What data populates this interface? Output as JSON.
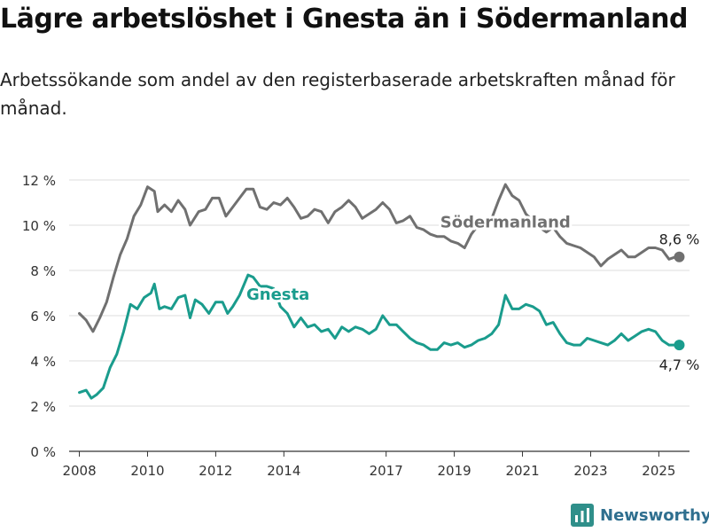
{
  "title": "Lägre arbetslöshet i Gnesta än i Södermanland",
  "subtitle": "Arbetssökande som andel av den registerbaserade arbetskraften månad för månad.",
  "brand": "Newsworthy",
  "colors": {
    "gnesta": "#1a9c8d",
    "sodermanland": "#707070",
    "grid": "#dddddd",
    "axis": "#333333"
  },
  "chart_data": {
    "type": "line",
    "y_unit": "%",
    "ylim": [
      0,
      12
    ],
    "xlim": [
      2007.7,
      2025.9
    ],
    "y_ticks": [
      {
        "value": 0,
        "label": "0 %"
      },
      {
        "value": 2,
        "label": "2 %"
      },
      {
        "value": 4,
        "label": "4 %"
      },
      {
        "value": 6,
        "label": "6 %"
      },
      {
        "value": 8,
        "label": "8 %"
      },
      {
        "value": 10,
        "label": "10 %"
      },
      {
        "value": 12,
        "label": "12 %"
      }
    ],
    "x_ticks": [
      {
        "value": 2008,
        "label": "2008"
      },
      {
        "value": 2010,
        "label": "2010"
      },
      {
        "value": 2012,
        "label": "2012"
      },
      {
        "value": 2014,
        "label": "2014"
      },
      {
        "value": 2017,
        "label": "2017"
      },
      {
        "value": 2019,
        "label": "2019"
      },
      {
        "value": 2021,
        "label": "2021"
      },
      {
        "value": 2023,
        "label": "2023"
      },
      {
        "value": 2025,
        "label": "2025"
      }
    ],
    "grid": true,
    "series": [
      {
        "name": "Södermanland",
        "color": "#707070",
        "end_label": "8,6 %",
        "points": [
          [
            2008.0,
            6.1
          ],
          [
            2008.2,
            5.8
          ],
          [
            2008.4,
            5.3
          ],
          [
            2008.6,
            5.9
          ],
          [
            2008.8,
            6.6
          ],
          [
            2009.0,
            7.7
          ],
          [
            2009.2,
            8.7
          ],
          [
            2009.4,
            9.4
          ],
          [
            2009.6,
            10.4
          ],
          [
            2009.8,
            10.9
          ],
          [
            2010.0,
            11.7
          ],
          [
            2010.2,
            11.5
          ],
          [
            2010.3,
            10.6
          ],
          [
            2010.5,
            10.9
          ],
          [
            2010.7,
            10.6
          ],
          [
            2010.9,
            11.1
          ],
          [
            2011.1,
            10.7
          ],
          [
            2011.25,
            10.0
          ],
          [
            2011.5,
            10.6
          ],
          [
            2011.7,
            10.7
          ],
          [
            2011.9,
            11.2
          ],
          [
            2012.1,
            11.2
          ],
          [
            2012.3,
            10.4
          ],
          [
            2012.5,
            10.8
          ],
          [
            2012.7,
            11.2
          ],
          [
            2012.9,
            11.6
          ],
          [
            2013.1,
            11.6
          ],
          [
            2013.3,
            10.8
          ],
          [
            2013.5,
            10.7
          ],
          [
            2013.7,
            11.0
          ],
          [
            2013.9,
            10.9
          ],
          [
            2014.1,
            11.2
          ],
          [
            2014.3,
            10.8
          ],
          [
            2014.5,
            10.3
          ],
          [
            2014.7,
            10.4
          ],
          [
            2014.9,
            10.7
          ],
          [
            2015.1,
            10.6
          ],
          [
            2015.3,
            10.1
          ],
          [
            2015.5,
            10.6
          ],
          [
            2015.7,
            10.8
          ],
          [
            2015.9,
            11.1
          ],
          [
            2016.1,
            10.8
          ],
          [
            2016.3,
            10.3
          ],
          [
            2016.5,
            10.5
          ],
          [
            2016.7,
            10.7
          ],
          [
            2016.9,
            11.0
          ],
          [
            2017.1,
            10.7
          ],
          [
            2017.3,
            10.1
          ],
          [
            2017.5,
            10.2
          ],
          [
            2017.7,
            10.4
          ],
          [
            2017.9,
            9.9
          ],
          [
            2018.1,
            9.8
          ],
          [
            2018.3,
            9.6
          ],
          [
            2018.5,
            9.5
          ],
          [
            2018.7,
            9.5
          ],
          [
            2018.9,
            9.3
          ],
          [
            2019.1,
            9.2
          ],
          [
            2019.3,
            9.0
          ],
          [
            2019.5,
            9.6
          ],
          [
            2019.7,
            10.0
          ],
          [
            2019.9,
            10.2
          ],
          [
            2020.1,
            10.3
          ],
          [
            2020.3,
            11.1
          ],
          [
            2020.5,
            11.8
          ],
          [
            2020.7,
            11.3
          ],
          [
            2020.9,
            11.1
          ],
          [
            2021.1,
            10.5
          ],
          [
            2021.3,
            10.2
          ],
          [
            2021.5,
            9.9
          ],
          [
            2021.7,
            9.7
          ],
          [
            2021.9,
            9.9
          ],
          [
            2022.1,
            9.5
          ],
          [
            2022.3,
            9.2
          ],
          [
            2022.5,
            9.1
          ],
          [
            2022.7,
            9.0
          ],
          [
            2022.9,
            8.8
          ],
          [
            2023.1,
            8.6
          ],
          [
            2023.3,
            8.2
          ],
          [
            2023.5,
            8.5
          ],
          [
            2023.7,
            8.7
          ],
          [
            2023.9,
            8.9
          ],
          [
            2024.1,
            8.6
          ],
          [
            2024.3,
            8.6
          ],
          [
            2024.5,
            8.8
          ],
          [
            2024.7,
            9.0
          ],
          [
            2024.9,
            9.0
          ],
          [
            2025.1,
            8.9
          ],
          [
            2025.3,
            8.5
          ],
          [
            2025.5,
            8.6
          ],
          [
            2025.6,
            8.6
          ]
        ]
      },
      {
        "name": "Gnesta",
        "color": "#1a9c8d",
        "end_label": "4,7 %",
        "points": [
          [
            2008.0,
            2.6
          ],
          [
            2008.2,
            2.7
          ],
          [
            2008.35,
            2.35
          ],
          [
            2008.5,
            2.5
          ],
          [
            2008.7,
            2.8
          ],
          [
            2008.9,
            3.7
          ],
          [
            2009.1,
            4.3
          ],
          [
            2009.3,
            5.3
          ],
          [
            2009.5,
            6.5
          ],
          [
            2009.7,
            6.3
          ],
          [
            2009.9,
            6.8
          ],
          [
            2010.1,
            7.0
          ],
          [
            2010.2,
            7.4
          ],
          [
            2010.35,
            6.3
          ],
          [
            2010.5,
            6.4
          ],
          [
            2010.7,
            6.3
          ],
          [
            2010.9,
            6.8
          ],
          [
            2011.1,
            6.9
          ],
          [
            2011.25,
            5.9
          ],
          [
            2011.4,
            6.7
          ],
          [
            2011.6,
            6.5
          ],
          [
            2011.8,
            6.1
          ],
          [
            2012.0,
            6.6
          ],
          [
            2012.2,
            6.6
          ],
          [
            2012.35,
            6.1
          ],
          [
            2012.5,
            6.4
          ],
          [
            2012.7,
            6.9
          ],
          [
            2012.95,
            7.8
          ],
          [
            2013.1,
            7.7
          ],
          [
            2013.3,
            7.3
          ],
          [
            2013.5,
            7.3
          ],
          [
            2013.7,
            7.2
          ],
          [
            2013.9,
            6.4
          ],
          [
            2014.1,
            6.1
          ],
          [
            2014.3,
            5.5
          ],
          [
            2014.5,
            5.9
          ],
          [
            2014.7,
            5.5
          ],
          [
            2014.9,
            5.6
          ],
          [
            2015.1,
            5.3
          ],
          [
            2015.3,
            5.4
          ],
          [
            2015.5,
            5.0
          ],
          [
            2015.7,
            5.5
          ],
          [
            2015.9,
            5.3
          ],
          [
            2016.1,
            5.5
          ],
          [
            2016.3,
            5.4
          ],
          [
            2016.5,
            5.2
          ],
          [
            2016.7,
            5.4
          ],
          [
            2016.9,
            6.0
          ],
          [
            2017.1,
            5.6
          ],
          [
            2017.3,
            5.6
          ],
          [
            2017.5,
            5.3
          ],
          [
            2017.7,
            5.0
          ],
          [
            2017.9,
            4.8
          ],
          [
            2018.1,
            4.7
          ],
          [
            2018.3,
            4.5
          ],
          [
            2018.5,
            4.5
          ],
          [
            2018.7,
            4.8
          ],
          [
            2018.9,
            4.7
          ],
          [
            2019.1,
            4.8
          ],
          [
            2019.3,
            4.6
          ],
          [
            2019.5,
            4.7
          ],
          [
            2019.7,
            4.9
          ],
          [
            2019.9,
            5.0
          ],
          [
            2020.1,
            5.2
          ],
          [
            2020.3,
            5.6
          ],
          [
            2020.5,
            6.9
          ],
          [
            2020.7,
            6.3
          ],
          [
            2020.9,
            6.3
          ],
          [
            2021.1,
            6.5
          ],
          [
            2021.3,
            6.4
          ],
          [
            2021.5,
            6.2
          ],
          [
            2021.7,
            5.6
          ],
          [
            2021.9,
            5.7
          ],
          [
            2022.1,
            5.2
          ],
          [
            2022.3,
            4.8
          ],
          [
            2022.5,
            4.7
          ],
          [
            2022.7,
            4.7
          ],
          [
            2022.9,
            5.0
          ],
          [
            2023.1,
            4.9
          ],
          [
            2023.3,
            4.8
          ],
          [
            2023.5,
            4.7
          ],
          [
            2023.7,
            4.9
          ],
          [
            2023.9,
            5.2
          ],
          [
            2024.1,
            4.9
          ],
          [
            2024.3,
            5.1
          ],
          [
            2024.5,
            5.3
          ],
          [
            2024.7,
            5.4
          ],
          [
            2024.9,
            5.3
          ],
          [
            2025.1,
            4.9
          ],
          [
            2025.3,
            4.7
          ],
          [
            2025.5,
            4.7
          ],
          [
            2025.6,
            4.7
          ]
        ]
      }
    ]
  }
}
